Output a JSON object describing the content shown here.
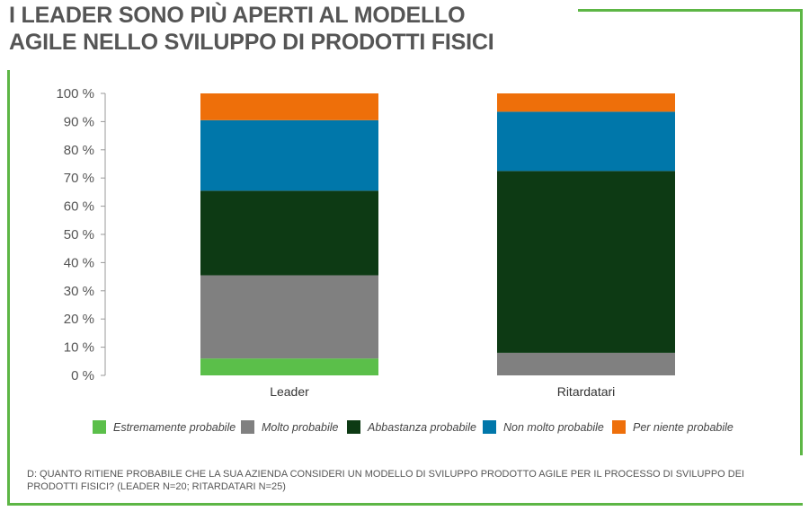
{
  "title": "I LEADER SONO PIÙ APERTI AL MODELLO\nAGILE NELLO SVILUPPO DI PRODOTTI FISICI",
  "footnote": "D: QUANTO RITIENE PROBABILE CHE LA SUA AZIENDA CONSIDERI UN MODELLO DI SVILUPPO PRODOTTO AGILE PER IL PROCESSO DI SVILUPPO DEI PRODOTTI FISICI? (LEADER N=20; RITARDATARI N=25)",
  "colors": {
    "frame": "#5db645"
  },
  "chart_data": {
    "type": "bar",
    "stacked": true,
    "categories": [
      "Leader",
      "Ritardatari"
    ],
    "ylim": [
      0,
      100
    ],
    "yticks": [
      "0 %",
      "10 %",
      "20 %",
      "30 %",
      "40 %",
      "50 %",
      "60 %",
      "70 %",
      "80 %",
      "90 %",
      "100 %"
    ],
    "legend_position": "bottom",
    "grid": false,
    "series": [
      {
        "name": "Estremamente probabile",
        "color": "#5bbf4a",
        "values": [
          6,
          0
        ]
      },
      {
        "name": "Molto probabile",
        "color": "#808080",
        "values": [
          29.5,
          8
        ]
      },
      {
        "name": "Abbastanza probabile",
        "color": "#0d3a14",
        "values": [
          30,
          64.5
        ]
      },
      {
        "name": "Non molto probabile",
        "color": "#0077aa",
        "values": [
          25,
          21
        ]
      },
      {
        "name": "Per niente probabile",
        "color": "#ee6f0a",
        "values": [
          9.5,
          6.5
        ]
      }
    ]
  }
}
